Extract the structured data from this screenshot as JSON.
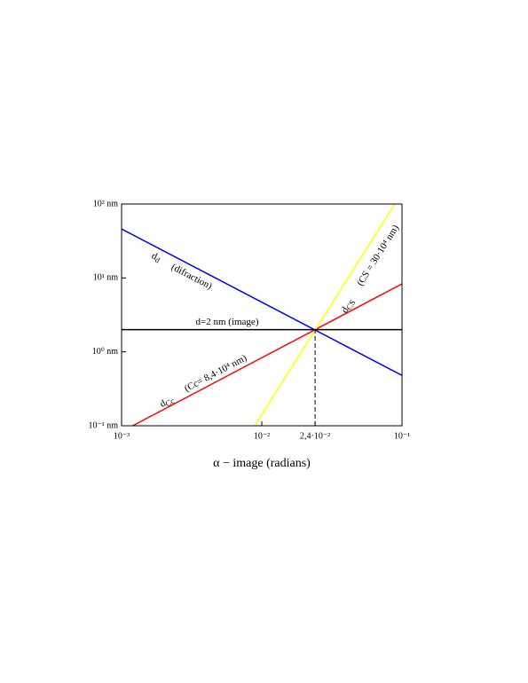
{
  "chart_data": {
    "type": "line",
    "x_label": "α  − image (radians)",
    "xscale": "log",
    "yscale": "log",
    "xlim": [
      0.001,
      0.1
    ],
    "ylim": [
      0.1,
      100
    ],
    "xticks": [
      {
        "value": 0.001,
        "label": "10⁻³"
      },
      {
        "value": 0.01,
        "label": "10⁻²"
      },
      {
        "value": 0.024,
        "label": "2,4·10⁻²"
      },
      {
        "value": 0.1,
        "label": "10⁻¹"
      }
    ],
    "yticks": [
      {
        "value": 0.1,
        "label": "10⁻¹ nm"
      },
      {
        "value": 1,
        "label": "10⁰ nm"
      },
      {
        "value": 10,
        "label": "10¹ nm"
      },
      {
        "value": 100,
        "label": "10² nm"
      }
    ],
    "series": [
      {
        "color": "#0000ff",
        "x": [
          0.001,
          0.1
        ],
        "values": [
          46,
          0.48
        ]
      },
      {
        "color": "#ff0000",
        "x": [
          0.0012,
          0.1
        ],
        "values": [
          0.1,
          8.3
        ]
      },
      {
        "color": "#ffff00",
        "x": [
          0.0089,
          0.089
        ],
        "values": [
          0.1,
          100
        ]
      },
      {
        "color": "#000000",
        "x": [
          0.001,
          0.1
        ],
        "values": [
          2,
          2
        ]
      },
      {
        "color": "#000000",
        "x": [
          0.024,
          0.024
        ],
        "values": [
          0.1,
          2
        ],
        "dashed": true
      }
    ],
    "annotations": [
      {
        "text": "d",
        "sub": "d"
      },
      {
        "text": "(difraction)"
      },
      {
        "text": "d=2 nm (image)"
      },
      {
        "text": "d",
        "sub": "CS"
      },
      {
        "text": "(CS = 30·10⁴ nm)"
      },
      {
        "text": "d",
        "sub": "Cc"
      },
      {
        "text": "(Cc= 8,4·10⁴ nm)"
      }
    ]
  }
}
